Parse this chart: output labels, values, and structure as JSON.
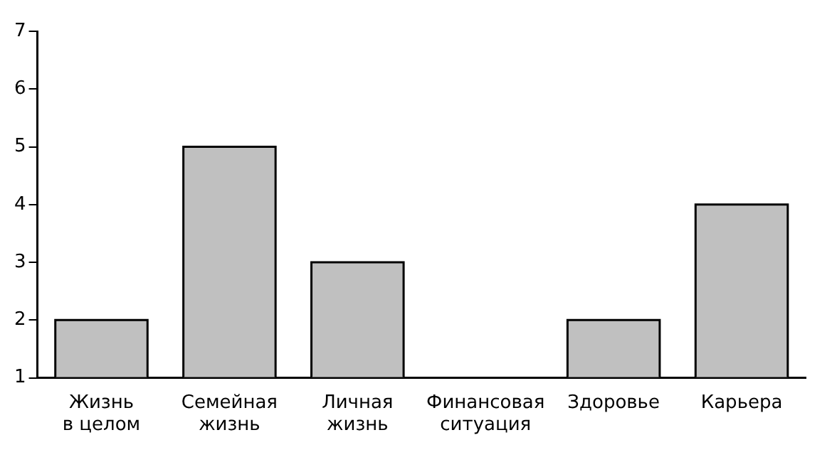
{
  "chart_data": {
    "type": "bar",
    "categories": [
      "Жизнь в целом",
      "Семейная жизнь",
      "Личная жизнь",
      "Финансовая ситуация",
      "Здоровье",
      "Карьера"
    ],
    "values": [
      2,
      5,
      3,
      1,
      2,
      4
    ],
    "color": "#c0c0c0",
    "ylim": [
      1,
      7
    ],
    "yticks": [
      1,
      2,
      3,
      4,
      5,
      6,
      7
    ],
    "grid": false
  }
}
